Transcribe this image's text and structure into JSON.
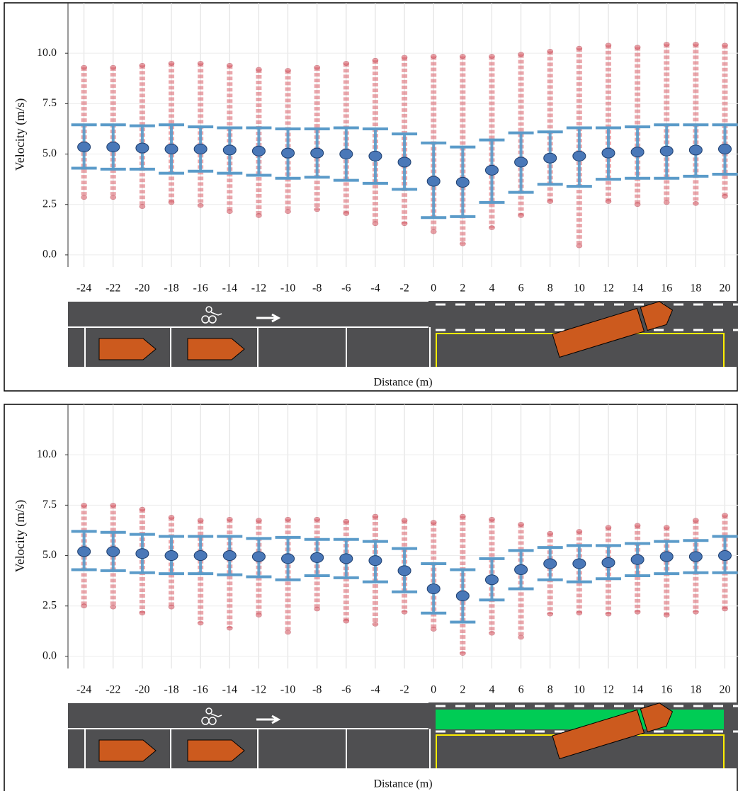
{
  "chart_data": [
    {
      "type": "errorbar",
      "x_label": "Distance (m)",
      "y_label": "Velocity (m/s)",
      "x": [
        -24,
        -22,
        -20,
        -18,
        -16,
        -14,
        -12,
        -10,
        -8,
        -6,
        -4,
        -2,
        0,
        2,
        4,
        6,
        8,
        10,
        12,
        14,
        16,
        18,
        20
      ],
      "values": [
        5.35,
        5.35,
        5.3,
        5.25,
        5.25,
        5.2,
        5.15,
        5.05,
        5.05,
        5.0,
        4.9,
        4.6,
        3.65,
        3.6,
        4.2,
        4.6,
        4.8,
        4.9,
        5.05,
        5.1,
        5.15,
        5.2,
        5.25
      ],
      "sd_high": [
        6.45,
        6.45,
        6.4,
        6.45,
        6.35,
        6.3,
        6.3,
        6.25,
        6.25,
        6.3,
        6.25,
        6.0,
        5.55,
        5.35,
        5.7,
        6.05,
        6.1,
        6.3,
        6.3,
        6.35,
        6.45,
        6.45,
        6.45
      ],
      "sd_low": [
        4.3,
        4.25,
        4.25,
        4.05,
        4.15,
        4.05,
        3.95,
        3.8,
        3.85,
        3.7,
        3.55,
        3.25,
        1.85,
        1.9,
        2.6,
        3.1,
        3.5,
        3.4,
        3.75,
        3.8,
        3.8,
        3.9,
        4.0
      ],
      "point_max": [
        9.3,
        9.3,
        9.4,
        9.5,
        9.5,
        9.4,
        9.2,
        9.15,
        9.3,
        9.5,
        9.65,
        9.8,
        9.85,
        9.85,
        9.85,
        9.95,
        10.1,
        10.25,
        10.4,
        10.3,
        10.45,
        10.45,
        10.4
      ],
      "point_min": [
        2.85,
        2.85,
        2.4,
        2.6,
        2.45,
        2.15,
        1.95,
        2.15,
        2.25,
        2.05,
        1.55,
        1.55,
        1.15,
        0.55,
        1.35,
        1.95,
        2.65,
        0.45,
        2.65,
        2.5,
        2.6,
        2.55,
        2.9
      ],
      "xlim": [
        -25.1,
        20.9
      ],
      "ylim": [
        -0.6,
        12.5
      ],
      "xticks": [
        -24,
        -22,
        -20,
        -18,
        -16,
        -14,
        -12,
        -10,
        -8,
        -6,
        -4,
        -2,
        0,
        2,
        4,
        6,
        8,
        10,
        12,
        14,
        16,
        18,
        20
      ],
      "yticks": [
        {
          "value": 0,
          "label": "0.0"
        },
        2.5,
        {
          "value": 5,
          "label": "5.0"
        },
        7.5,
        {
          "value": 10,
          "label": "10.0"
        }
      ],
      "grid": true,
      "color": "#5b9bc9",
      "mean_color": "#4a78b8",
      "point_color": "#d9606a",
      "green_lane": false
    },
    {
      "type": "errorbar",
      "x_label": "Distance (m)",
      "y_label": "Velocity (m/s)",
      "x": [
        -24,
        -22,
        -20,
        -18,
        -16,
        -14,
        -12,
        -10,
        -8,
        -6,
        -4,
        -2,
        0,
        2,
        4,
        6,
        8,
        10,
        12,
        14,
        16,
        18,
        20
      ],
      "values": [
        5.2,
        5.2,
        5.1,
        5.0,
        5.0,
        5.0,
        4.95,
        4.85,
        4.9,
        4.85,
        4.75,
        4.25,
        3.35,
        3.0,
        3.8,
        4.3,
        4.6,
        4.6,
        4.65,
        4.8,
        4.95,
        4.95,
        5.0
      ],
      "sd_high": [
        6.2,
        6.15,
        6.05,
        5.95,
        5.95,
        5.95,
        5.85,
        5.9,
        5.8,
        5.8,
        5.7,
        5.35,
        4.6,
        4.3,
        4.85,
        5.25,
        5.4,
        5.5,
        5.5,
        5.6,
        5.7,
        5.75,
        5.95
      ],
      "sd_low": [
        4.3,
        4.25,
        4.15,
        4.1,
        4.1,
        4.05,
        3.95,
        3.8,
        4.0,
        3.9,
        3.7,
        3.2,
        2.15,
        1.7,
        2.8,
        3.35,
        3.8,
        3.7,
        3.85,
        4.0,
        4.1,
        4.15,
        4.15
      ],
      "point_max": [
        7.5,
        7.5,
        7.3,
        6.9,
        6.75,
        6.8,
        6.75,
        6.8,
        6.8,
        6.7,
        6.95,
        6.75,
        6.65,
        6.95,
        6.8,
        6.55,
        6.1,
        6.2,
        6.4,
        6.5,
        6.4,
        6.75,
        7.0
      ],
      "point_min": [
        2.5,
        2.45,
        2.15,
        2.45,
        1.65,
        1.4,
        2.05,
        1.2,
        2.35,
        1.75,
        1.6,
        2.2,
        1.35,
        0.15,
        1.15,
        0.95,
        2.1,
        2.15,
        2.1,
        2.2,
        2.05,
        2.2,
        2.35
      ],
      "xlim": [
        -25.1,
        20.9
      ],
      "ylim": [
        -0.6,
        12.5
      ],
      "xticks": [
        -24,
        -22,
        -20,
        -18,
        -16,
        -14,
        -12,
        -10,
        -8,
        -6,
        -4,
        -2,
        0,
        2,
        4,
        6,
        8,
        10,
        12,
        14,
        16,
        18,
        20
      ],
      "yticks": [
        {
          "value": 0,
          "label": "0.0"
        },
        2.5,
        {
          "value": 5,
          "label": "5.0"
        },
        7.5,
        {
          "value": 10,
          "label": "10.0"
        }
      ],
      "grid": true,
      "color": "#5b9bc9",
      "mean_color": "#4a78b8",
      "point_color": "#d9606a",
      "green_lane": true
    }
  ]
}
